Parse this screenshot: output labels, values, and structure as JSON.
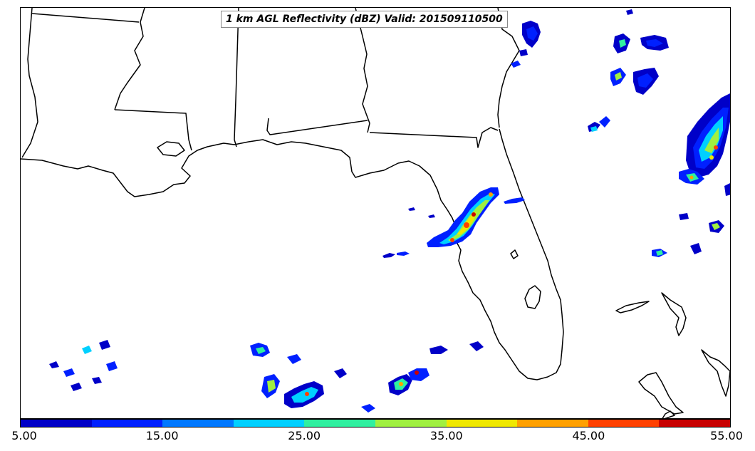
{
  "title": "1 km AGL Reflectivity (dBZ) Valid: 201509110500",
  "colorbar": {
    "min": 5.0,
    "max": 55.0,
    "interval": 5,
    "colors": [
      "#0000c8",
      "#0020ff",
      "#0078ff",
      "#00d0ff",
      "#30f0a0",
      "#a0f040",
      "#f0e800",
      "#ffa000",
      "#ff4000",
      "#c80000"
    ],
    "tick_labels": [
      "5.00",
      "15.00",
      "25.00",
      "35.00",
      "45.00",
      "55.00"
    ]
  },
  "colors": {
    "background": "#ffffff",
    "boundary_lines": "#000000"
  },
  "chart_data": {
    "type": "heatmap",
    "title": "1 km AGL Reflectivity (dBZ) Valid: 201509110500",
    "units": "dBZ",
    "value_range": [
      5,
      55
    ],
    "region": "Southeastern United States, Gulf of Mexico and western Atlantic",
    "legend_placement": "bottom colorbar"
  }
}
